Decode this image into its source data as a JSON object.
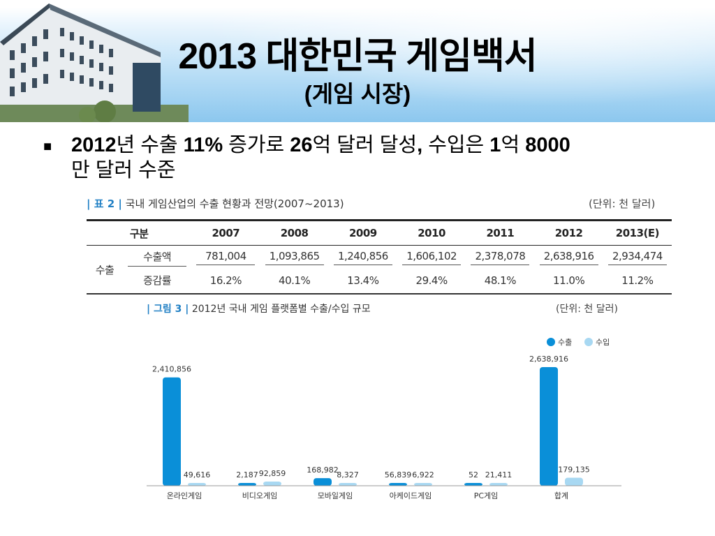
{
  "header": {
    "title": "2013 대한민국 게임백서",
    "subtitle": "(게임 시장)"
  },
  "bullet": {
    "p1": "2012",
    "p2": "년 수출 ",
    "p3": "11%",
    "p4": " 증가로 ",
    "p5": "26",
    "p6": "억 달러 달성",
    "p7": ", ",
    "p8": "수입은 ",
    "p9": "1",
    "p10": "억 ",
    "p11": "8000",
    "p12": "만 달러 수준"
  },
  "table": {
    "caption_tag": "| 표 2 |",
    "caption": "국내 게임산업의 수출 현황과 전망(2007~2013)",
    "unit": "(단위: 천 달러)",
    "col_header": "구분",
    "years": [
      "2007",
      "2008",
      "2009",
      "2010",
      "2011",
      "2012",
      "2013(E)"
    ],
    "group_label": "수출",
    "rows": [
      {
        "label": "수출액",
        "values": [
          "781,004",
          "1,093,865",
          "1,240,856",
          "1,606,102",
          "2,378,078",
          "2,638,916",
          "2,934,474"
        ]
      },
      {
        "label": "증감률",
        "values": [
          "16.2%",
          "40.1%",
          "13.4%",
          "29.4%",
          "48.1%",
          "11.0%",
          "11.2%"
        ]
      }
    ]
  },
  "figure": {
    "caption_tag": "| 그림 3 |",
    "caption": "2012년 국내 게임 플랫폼별 수출/수입 규모",
    "unit": "(단위: 천 달러)"
  },
  "chart_data": {
    "type": "bar",
    "title": "2012년 국내 게임 플랫폼별 수출/수입 규모",
    "categories": [
      "온라인게임",
      "비디오게임",
      "모바일게임",
      "아케이드게임",
      "PC게임",
      "합계"
    ],
    "series": [
      {
        "name": "수출",
        "values": [
          2410856,
          2187,
          168982,
          56839,
          52,
          2638916
        ],
        "labels": [
          "2,410,856",
          "2,187",
          "168,982",
          "56,839",
          "52",
          "2,638,916"
        ]
      },
      {
        "name": "수입",
        "values": [
          49616,
          92859,
          8327,
          6922,
          21411,
          179135
        ],
        "labels": [
          "49,616",
          "92,859",
          "8,327",
          "6,922",
          "21,411",
          "179,135"
        ]
      }
    ],
    "colors": {
      "수출": "#0a8fd8",
      "수입": "#a8d8f2"
    },
    "legend_position": "top-right",
    "ylim": [
      0,
      2638916
    ],
    "grid": false
  }
}
